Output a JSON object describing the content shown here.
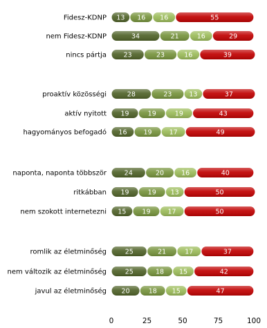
{
  "chart_data": {
    "type": "bar",
    "orientation": "horizontal",
    "stacked": true,
    "percent_stacked": true,
    "categories": [
      "Fidesz-KDNP",
      "nem Fidesz-KDNP",
      "nincs pártja",
      "proaktív közösségi",
      "aktív nyitott",
      "hagyományos befogadó",
      "naponta, naponta többször",
      "ritkábban",
      "nem szokott internetezni",
      "romlik az életminőség",
      "nem változik az életminőség",
      "javul az életminőség"
    ],
    "series": [
      {
        "color": "#4f6228",
        "values": [
          13,
          34,
          23,
          28,
          19,
          16,
          24,
          19,
          15,
          25,
          25,
          20
        ]
      },
      {
        "color": "#76933c",
        "values": [
          16,
          21,
          23,
          23,
          19,
          19,
          20,
          19,
          19,
          21,
          18,
          18
        ]
      },
      {
        "color": "#9bbb59",
        "values": [
          16,
          16,
          16,
          13,
          19,
          17,
          16,
          13,
          17,
          17,
          15,
          15
        ]
      },
      {
        "color": "#c00000",
        "values": [
          55,
          29,
          39,
          37,
          43,
          49,
          40,
          50,
          50,
          37,
          42,
          47
        ]
      }
    ],
    "xlim": [
      0,
      100
    ],
    "x_ticks": [
      "0",
      "25",
      "50",
      "75",
      "100"
    ],
    "grid": false,
    "legend": "none"
  }
}
